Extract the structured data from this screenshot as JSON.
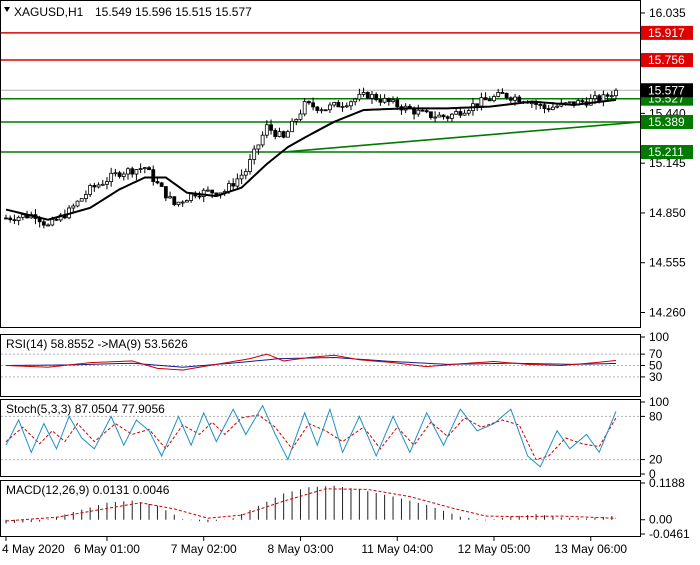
{
  "header": {
    "symbol": "XAGUSD,H1",
    "ohlc": "15.549 15.596 15.515 15.577"
  },
  "colors": {
    "bull": "#ffffff",
    "bear": "#000000",
    "resistance": "#e00000",
    "support": "#007a00",
    "price_tag": "#000000",
    "ma": "#000000",
    "rsi_line": "#cc0000",
    "rsi_ma": "#1a1a8c",
    "stoch_main": "#1e90c8",
    "stoch_signal": "#cc0000",
    "macd_hist": "#202020",
    "macd_signal": "#cc0000",
    "grid": "#b0b0b0"
  },
  "price_axis": {
    "ticks": [
      "16.035",
      "15.440",
      "15.145",
      "14.850",
      "14.555",
      "14.260"
    ]
  },
  "levels": {
    "resistance": [
      {
        "label": "15.917",
        "value": 15.917
      },
      {
        "label": "15.756",
        "value": 15.756
      }
    ],
    "support": [
      {
        "label": "15.527",
        "value": 15.527
      },
      {
        "label": "15.389",
        "value": 15.389
      },
      {
        "label": "15.211",
        "value": 15.211
      }
    ],
    "current_price": {
      "label": "15.577",
      "value": 15.577
    }
  },
  "rsi": {
    "label": "RSI(14) 58.8552  ->MA(9) 53.5626",
    "axis": [
      "70",
      "50",
      "30"
    ],
    "top_label": "100"
  },
  "stoch": {
    "label": "Stoch(5,3,3) 87.0504 77.9056",
    "axis": [
      "100",
      "80",
      "20",
      "0"
    ]
  },
  "macd": {
    "label": "MACD(12,26,9) 0.0131 0.0046",
    "axis": [
      "0.1188",
      "0.00",
      "-0.0461"
    ]
  },
  "time_axis": [
    "4 May 2020",
    "6 May 01:00",
    "7 May 02:00",
    "8 May 03:00",
    "11 May 04:00",
    "12 May 05:00",
    "13 May 06:00"
  ],
  "chart_data": {
    "type": "candlestick",
    "title": "XAGUSD,H1",
    "ylim": [
      14.18,
      16.1
    ],
    "x_labels": [
      "4 May 2020",
      "6 May 01:00",
      "7 May 02:00",
      "8 May 03:00",
      "11 May 04:00",
      "12 May 05:00",
      "13 May 06:00"
    ],
    "x_label_index": [
      0,
      24,
      47,
      70,
      93,
      116,
      139
    ],
    "ohlc_path": [
      {
        "i": 0,
        "p": 14.82
      },
      {
        "i": 7,
        "p": 14.84
      },
      {
        "i": 10,
        "p": 14.77
      },
      {
        "i": 15,
        "p": 14.86
      },
      {
        "i": 20,
        "p": 14.99
      },
      {
        "i": 27,
        "p": 15.09
      },
      {
        "i": 33,
        "p": 15.12
      },
      {
        "i": 36,
        "p": 15.02
      },
      {
        "i": 40,
        "p": 14.9
      },
      {
        "i": 45,
        "p": 14.97
      },
      {
        "i": 52,
        "p": 14.98
      },
      {
        "i": 57,
        "p": 15.1
      },
      {
        "i": 62,
        "p": 15.36
      },
      {
        "i": 66,
        "p": 15.29
      },
      {
        "i": 71,
        "p": 15.49
      },
      {
        "i": 76,
        "p": 15.47
      },
      {
        "i": 80,
        "p": 15.5
      },
      {
        "i": 86,
        "p": 15.55
      },
      {
        "i": 95,
        "p": 15.47
      },
      {
        "i": 100,
        "p": 15.43
      },
      {
        "i": 105,
        "p": 15.42
      },
      {
        "i": 112,
        "p": 15.5
      },
      {
        "i": 118,
        "p": 15.55
      },
      {
        "i": 124,
        "p": 15.52
      },
      {
        "i": 128,
        "p": 15.47
      },
      {
        "i": 135,
        "p": 15.5
      },
      {
        "i": 142,
        "p": 15.53
      },
      {
        "i": 145,
        "p": 15.577
      }
    ],
    "candle_count": 146,
    "moving_average": [
      {
        "i": 0,
        "p": 14.87
      },
      {
        "i": 10,
        "p": 14.81
      },
      {
        "i": 20,
        "p": 14.88
      },
      {
        "i": 27,
        "p": 14.99
      },
      {
        "i": 33,
        "p": 15.06
      },
      {
        "i": 38,
        "p": 15.06
      },
      {
        "i": 43,
        "p": 14.97
      },
      {
        "i": 50,
        "p": 14.95
      },
      {
        "i": 56,
        "p": 15.0
      },
      {
        "i": 62,
        "p": 15.14
      },
      {
        "i": 67,
        "p": 15.24
      },
      {
        "i": 72,
        "p": 15.31
      },
      {
        "i": 78,
        "p": 15.39
      },
      {
        "i": 85,
        "p": 15.46
      },
      {
        "i": 95,
        "p": 15.47
      },
      {
        "i": 105,
        "p": 15.47
      },
      {
        "i": 115,
        "p": 15.48
      },
      {
        "i": 125,
        "p": 15.51
      },
      {
        "i": 135,
        "p": 15.49
      },
      {
        "i": 145,
        "p": 15.52
      }
    ],
    "trendline": {
      "from": {
        "i": 66,
        "p": 15.211
      },
      "to": {
        "i": 145,
        "p": 15.389
      }
    },
    "rsi_ylim": [
      0,
      100
    ],
    "rsi_path": [
      {
        "i": 0,
        "p": 50
      },
      {
        "i": 10,
        "p": 47
      },
      {
        "i": 20,
        "p": 55
      },
      {
        "i": 30,
        "p": 58
      },
      {
        "i": 36,
        "p": 45
      },
      {
        "i": 42,
        "p": 42
      },
      {
        "i": 50,
        "p": 52
      },
      {
        "i": 58,
        "p": 62
      },
      {
        "i": 62,
        "p": 70
      },
      {
        "i": 66,
        "p": 58
      },
      {
        "i": 72,
        "p": 64
      },
      {
        "i": 78,
        "p": 68
      },
      {
        "i": 84,
        "p": 60
      },
      {
        "i": 92,
        "p": 55
      },
      {
        "i": 100,
        "p": 48
      },
      {
        "i": 108,
        "p": 53
      },
      {
        "i": 116,
        "p": 57
      },
      {
        "i": 124,
        "p": 52
      },
      {
        "i": 132,
        "p": 50
      },
      {
        "i": 140,
        "p": 55
      },
      {
        "i": 145,
        "p": 58.8552
      }
    ],
    "rsi_ma_path": [
      {
        "i": 0,
        "p": 50
      },
      {
        "i": 15,
        "p": 51
      },
      {
        "i": 30,
        "p": 54
      },
      {
        "i": 42,
        "p": 47
      },
      {
        "i": 55,
        "p": 55
      },
      {
        "i": 65,
        "p": 62
      },
      {
        "i": 78,
        "p": 64
      },
      {
        "i": 92,
        "p": 57
      },
      {
        "i": 105,
        "p": 52
      },
      {
        "i": 120,
        "p": 54
      },
      {
        "i": 135,
        "p": 52
      },
      {
        "i": 145,
        "p": 53.5626
      }
    ],
    "stoch_ylim": [
      0,
      100
    ],
    "stoch_main_path": [
      {
        "i": 0,
        "p": 40
      },
      {
        "i": 3,
        "p": 75
      },
      {
        "i": 6,
        "p": 30
      },
      {
        "i": 9,
        "p": 70
      },
      {
        "i": 12,
        "p": 35
      },
      {
        "i": 15,
        "p": 80
      },
      {
        "i": 18,
        "p": 50
      },
      {
        "i": 21,
        "p": 35
      },
      {
        "i": 25,
        "p": 80
      },
      {
        "i": 28,
        "p": 40
      },
      {
        "i": 31,
        "p": 75
      },
      {
        "i": 34,
        "p": 60
      },
      {
        "i": 37,
        "p": 25
      },
      {
        "i": 41,
        "p": 80
      },
      {
        "i": 44,
        "p": 40
      },
      {
        "i": 47,
        "p": 85
      },
      {
        "i": 50,
        "p": 45
      },
      {
        "i": 54,
        "p": 90
      },
      {
        "i": 57,
        "p": 55
      },
      {
        "i": 61,
        "p": 95
      },
      {
        "i": 64,
        "p": 55
      },
      {
        "i": 67,
        "p": 20
      },
      {
        "i": 71,
        "p": 85
      },
      {
        "i": 74,
        "p": 40
      },
      {
        "i": 77,
        "p": 90
      },
      {
        "i": 80,
        "p": 30
      },
      {
        "i": 84,
        "p": 80
      },
      {
        "i": 88,
        "p": 25
      },
      {
        "i": 92,
        "p": 80
      },
      {
        "i": 96,
        "p": 30
      },
      {
        "i": 100,
        "p": 85
      },
      {
        "i": 104,
        "p": 40
      },
      {
        "i": 108,
        "p": 90
      },
      {
        "i": 112,
        "p": 60
      },
      {
        "i": 116,
        "p": 70
      },
      {
        "i": 120,
        "p": 90
      },
      {
        "i": 124,
        "p": 25
      },
      {
        "i": 127,
        "p": 10
      },
      {
        "i": 131,
        "p": 60
      },
      {
        "i": 134,
        "p": 35
      },
      {
        "i": 138,
        "p": 55
      },
      {
        "i": 141,
        "p": 30
      },
      {
        "i": 145,
        "p": 87.0504
      }
    ],
    "stoch_signal_path": [
      {
        "i": 0,
        "p": 45
      },
      {
        "i": 4,
        "p": 65
      },
      {
        "i": 8,
        "p": 42
      },
      {
        "i": 11,
        "p": 60
      },
      {
        "i": 14,
        "p": 45
      },
      {
        "i": 17,
        "p": 70
      },
      {
        "i": 21,
        "p": 45
      },
      {
        "i": 26,
        "p": 70
      },
      {
        "i": 30,
        "p": 55
      },
      {
        "i": 34,
        "p": 62
      },
      {
        "i": 38,
        "p": 35
      },
      {
        "i": 42,
        "p": 68
      },
      {
        "i": 46,
        "p": 55
      },
      {
        "i": 49,
        "p": 72
      },
      {
        "i": 52,
        "p": 55
      },
      {
        "i": 56,
        "p": 78
      },
      {
        "i": 60,
        "p": 82
      },
      {
        "i": 64,
        "p": 65
      },
      {
        "i": 68,
        "p": 35
      },
      {
        "i": 72,
        "p": 70
      },
      {
        "i": 76,
        "p": 60
      },
      {
        "i": 80,
        "p": 45
      },
      {
        "i": 85,
        "p": 65
      },
      {
        "i": 89,
        "p": 35
      },
      {
        "i": 93,
        "p": 65
      },
      {
        "i": 97,
        "p": 40
      },
      {
        "i": 101,
        "p": 72
      },
      {
        "i": 105,
        "p": 52
      },
      {
        "i": 109,
        "p": 78
      },
      {
        "i": 113,
        "p": 65
      },
      {
        "i": 118,
        "p": 75
      },
      {
        "i": 122,
        "p": 68
      },
      {
        "i": 126,
        "p": 20
      },
      {
        "i": 129,
        "p": 25
      },
      {
        "i": 133,
        "p": 50
      },
      {
        "i": 137,
        "p": 42
      },
      {
        "i": 141,
        "p": 38
      },
      {
        "i": 145,
        "p": 77.9056
      }
    ],
    "macd_ylim": [
      -0.0461,
      0.1188
    ],
    "macd_hist_path": [
      {
        "i": 0,
        "p": -0.012
      },
      {
        "i": 8,
        "p": -0.006
      },
      {
        "i": 16,
        "p": 0.025
      },
      {
        "i": 24,
        "p": 0.055
      },
      {
        "i": 30,
        "p": 0.062
      },
      {
        "i": 36,
        "p": 0.045
      },
      {
        "i": 42,
        "p": 0.002
      },
      {
        "i": 48,
        "p": -0.008
      },
      {
        "i": 54,
        "p": 0.005
      },
      {
        "i": 60,
        "p": 0.045
      },
      {
        "i": 66,
        "p": 0.085
      },
      {
        "i": 72,
        "p": 0.105
      },
      {
        "i": 78,
        "p": 0.11
      },
      {
        "i": 84,
        "p": 0.098
      },
      {
        "i": 92,
        "p": 0.075
      },
      {
        "i": 100,
        "p": 0.048
      },
      {
        "i": 108,
        "p": 0.01
      },
      {
        "i": 114,
        "p": -0.002
      },
      {
        "i": 120,
        "p": 0.01
      },
      {
        "i": 126,
        "p": 0.018
      },
      {
        "i": 132,
        "p": 0.008
      },
      {
        "i": 138,
        "p": 0.004
      },
      {
        "i": 145,
        "p": 0.0131
      }
    ],
    "macd_signal_path": [
      {
        "i": 0,
        "p": -0.004
      },
      {
        "i": 12,
        "p": 0.008
      },
      {
        "i": 22,
        "p": 0.032
      },
      {
        "i": 32,
        "p": 0.055
      },
      {
        "i": 40,
        "p": 0.035
      },
      {
        "i": 48,
        "p": 0.005
      },
      {
        "i": 56,
        "p": 0.015
      },
      {
        "i": 66,
        "p": 0.06
      },
      {
        "i": 76,
        "p": 0.1
      },
      {
        "i": 86,
        "p": 0.098
      },
      {
        "i": 96,
        "p": 0.075
      },
      {
        "i": 106,
        "p": 0.038
      },
      {
        "i": 114,
        "p": 0.012
      },
      {
        "i": 122,
        "p": 0.01
      },
      {
        "i": 132,
        "p": 0.012
      },
      {
        "i": 145,
        "p": 0.0046
      }
    ]
  }
}
